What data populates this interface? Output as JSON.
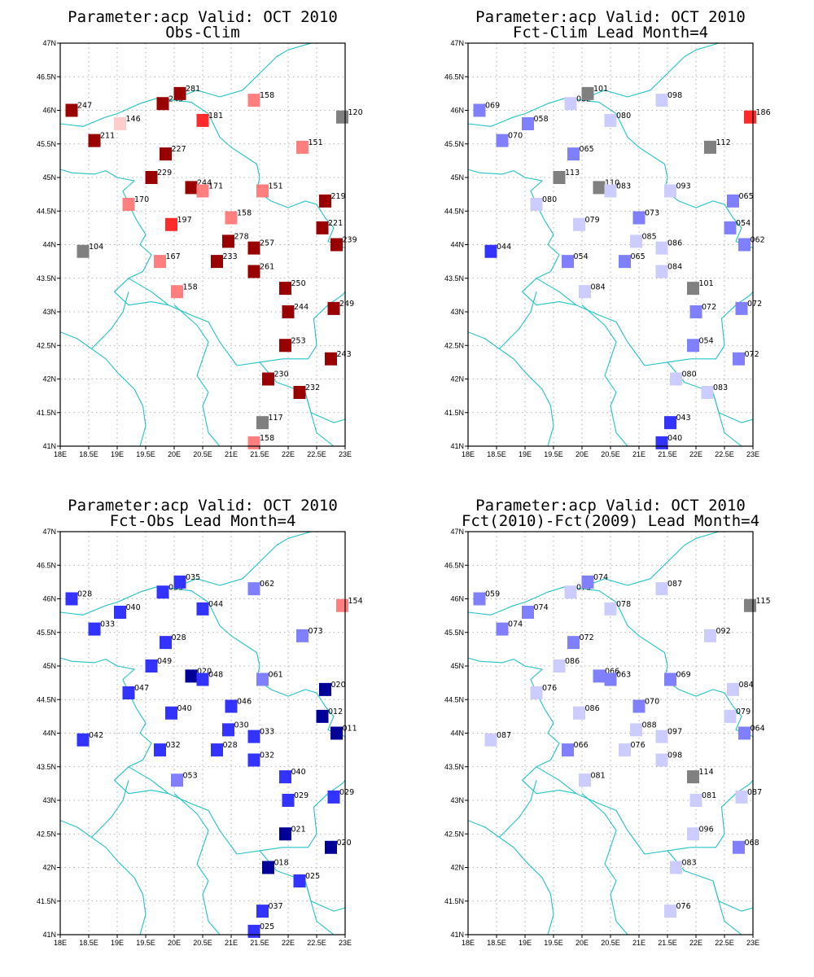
{
  "lon_ticks": [
    "18E",
    "18.5E",
    "19E",
    "19.5E",
    "20E",
    "20.5E",
    "21E",
    "21.5E",
    "22E",
    "22.5E",
    "23E"
  ],
  "lat_ticks": [
    "47N",
    "46.5N",
    "46N",
    "45.5N",
    "45N",
    "44.5N",
    "44N",
    "43.5N",
    "43N",
    "42.5N",
    "42N",
    "41.5N",
    "41N"
  ],
  "colors": {
    "dark_red": "#990000",
    "red": "#ff2a2a",
    "salmon": "#ff7f7f",
    "pink": "#ffcccc",
    "gray": "#808080",
    "pale_blue": "#ccccff",
    "light_blue": "#8080ff",
    "blue": "#3333ff",
    "dark_blue": "#000099",
    "border": "#22c3c6"
  },
  "panels": [
    {
      "title1": "Parameter:acp Valid: OCT 2010",
      "title2": "Obs-Clim",
      "stations": [
        {
          "lon": 18.2,
          "lat": 46.0,
          "label": "247",
          "color": "dark_red"
        },
        {
          "lon": 18.6,
          "lat": 45.55,
          "label": "211",
          "color": "dark_red"
        },
        {
          "lon": 19.05,
          "lat": 45.8,
          "label": "146",
          "color": "pink"
        },
        {
          "lon": 19.8,
          "lat": 46.1,
          "label": "245",
          "color": "dark_red"
        },
        {
          "lon": 20.1,
          "lat": 46.25,
          "label": "281",
          "color": "dark_red"
        },
        {
          "lon": 20.5,
          "lat": 45.85,
          "label": "181",
          "color": "red"
        },
        {
          "lon": 19.85,
          "lat": 45.35,
          "label": "227",
          "color": "dark_red"
        },
        {
          "lon": 19.6,
          "lat": 45.0,
          "label": "229",
          "color": "dark_red"
        },
        {
          "lon": 20.3,
          "lat": 44.85,
          "label": "244",
          "color": "dark_red"
        },
        {
          "lon": 20.5,
          "lat": 44.8,
          "label": "171",
          "color": "salmon"
        },
        {
          "lon": 19.2,
          "lat": 44.6,
          "label": "170",
          "color": "salmon"
        },
        {
          "lon": 19.95,
          "lat": 44.3,
          "label": "197",
          "color": "red"
        },
        {
          "lon": 21.0,
          "lat": 44.4,
          "label": "158",
          "color": "salmon"
        },
        {
          "lon": 20.95,
          "lat": 44.05,
          "label": "278",
          "color": "dark_red"
        },
        {
          "lon": 21.4,
          "lat": 43.95,
          "label": "257",
          "color": "dark_red"
        },
        {
          "lon": 20.75,
          "lat": 43.75,
          "label": "233",
          "color": "dark_red"
        },
        {
          "lon": 21.4,
          "lat": 43.6,
          "label": "261",
          "color": "dark_red"
        },
        {
          "lon": 19.75,
          "lat": 43.75,
          "label": "167",
          "color": "salmon"
        },
        {
          "lon": 18.4,
          "lat": 43.9,
          "label": "104",
          "color": "gray"
        },
        {
          "lon": 20.05,
          "lat": 43.3,
          "label": "158",
          "color": "salmon"
        },
        {
          "lon": 21.4,
          "lat": 46.15,
          "label": "158",
          "color": "salmon"
        },
        {
          "lon": 22.25,
          "lat": 45.45,
          "label": "151",
          "color": "salmon"
        },
        {
          "lon": 21.55,
          "lat": 44.8,
          "label": "151",
          "color": "salmon"
        },
        {
          "lon": 22.95,
          "lat": 45.9,
          "label": "120",
          "color": "gray"
        },
        {
          "lon": 22.65,
          "lat": 44.65,
          "label": "219",
          "color": "dark_red"
        },
        {
          "lon": 22.6,
          "lat": 44.25,
          "label": "221",
          "color": "dark_red"
        },
        {
          "lon": 22.85,
          "lat": 44.0,
          "label": "239",
          "color": "dark_red"
        },
        {
          "lon": 21.95,
          "lat": 43.35,
          "label": "250",
          "color": "dark_red"
        },
        {
          "lon": 22.0,
          "lat": 43.0,
          "label": "244",
          "color": "dark_red"
        },
        {
          "lon": 22.8,
          "lat": 43.05,
          "label": "249",
          "color": "dark_red"
        },
        {
          "lon": 21.95,
          "lat": 42.5,
          "label": "253",
          "color": "dark_red"
        },
        {
          "lon": 22.75,
          "lat": 42.3,
          "label": "243",
          "color": "dark_red"
        },
        {
          "lon": 21.65,
          "lat": 42.0,
          "label": "230",
          "color": "dark_red"
        },
        {
          "lon": 22.2,
          "lat": 41.8,
          "label": "232",
          "color": "dark_red"
        },
        {
          "lon": 21.55,
          "lat": 41.35,
          "label": "117",
          "color": "gray"
        },
        {
          "lon": 21.4,
          "lat": 41.05,
          "label": "158",
          "color": "salmon"
        }
      ]
    },
    {
      "title1": "Parameter:acp Valid: OCT 2010",
      "title2": "Fct-Clim Lead Month=4",
      "stations": [
        {
          "lon": 18.2,
          "lat": 46.0,
          "label": "069",
          "color": "light_blue"
        },
        {
          "lon": 18.6,
          "lat": 45.55,
          "label": "070",
          "color": "light_blue"
        },
        {
          "lon": 19.05,
          "lat": 45.8,
          "label": "058",
          "color": "light_blue"
        },
        {
          "lon": 19.8,
          "lat": 46.1,
          "label": "082",
          "color": "pale_blue"
        },
        {
          "lon": 20.1,
          "lat": 46.25,
          "label": "101",
          "color": "gray"
        },
        {
          "lon": 20.5,
          "lat": 45.85,
          "label": "080",
          "color": "pale_blue"
        },
        {
          "lon": 19.85,
          "lat": 45.35,
          "label": "065",
          "color": "light_blue"
        },
        {
          "lon": 19.6,
          "lat": 45.0,
          "label": "113",
          "color": "gray"
        },
        {
          "lon": 20.3,
          "lat": 44.85,
          "label": "110",
          "color": "gray"
        },
        {
          "lon": 20.5,
          "lat": 44.8,
          "label": "083",
          "color": "pale_blue"
        },
        {
          "lon": 19.2,
          "lat": 44.6,
          "label": "080",
          "color": "pale_blue"
        },
        {
          "lon": 19.95,
          "lat": 44.3,
          "label": "079",
          "color": "pale_blue"
        },
        {
          "lon": 21.0,
          "lat": 44.4,
          "label": "073",
          "color": "light_blue"
        },
        {
          "lon": 20.95,
          "lat": 44.05,
          "label": "085",
          "color": "pale_blue"
        },
        {
          "lon": 21.4,
          "lat": 43.95,
          "label": "086",
          "color": "pale_blue"
        },
        {
          "lon": 20.75,
          "lat": 43.75,
          "label": "065",
          "color": "light_blue"
        },
        {
          "lon": 21.4,
          "lat": 43.6,
          "label": "084",
          "color": "pale_blue"
        },
        {
          "lon": 19.75,
          "lat": 43.75,
          "label": "054",
          "color": "light_blue"
        },
        {
          "lon": 18.4,
          "lat": 43.9,
          "label": "044",
          "color": "blue"
        },
        {
          "lon": 20.05,
          "lat": 43.3,
          "label": "084",
          "color": "pale_blue"
        },
        {
          "lon": 21.4,
          "lat": 46.15,
          "label": "098",
          "color": "pale_blue"
        },
        {
          "lon": 22.25,
          "lat": 45.45,
          "label": "112",
          "color": "gray"
        },
        {
          "lon": 21.55,
          "lat": 44.8,
          "label": "093",
          "color": "pale_blue"
        },
        {
          "lon": 22.95,
          "lat": 45.9,
          "label": "186",
          "color": "red"
        },
        {
          "lon": 22.65,
          "lat": 44.65,
          "label": "065",
          "color": "light_blue"
        },
        {
          "lon": 22.6,
          "lat": 44.25,
          "label": "054",
          "color": "light_blue"
        },
        {
          "lon": 22.85,
          "lat": 44.0,
          "label": "062",
          "color": "light_blue"
        },
        {
          "lon": 21.95,
          "lat": 43.35,
          "label": "101",
          "color": "gray"
        },
        {
          "lon": 22.0,
          "lat": 43.0,
          "label": "072",
          "color": "light_blue"
        },
        {
          "lon": 22.8,
          "lat": 43.05,
          "label": "072",
          "color": "light_blue"
        },
        {
          "lon": 21.95,
          "lat": 42.5,
          "label": "054",
          "color": "light_blue"
        },
        {
          "lon": 22.75,
          "lat": 42.3,
          "label": "072",
          "color": "light_blue"
        },
        {
          "lon": 21.65,
          "lat": 42.0,
          "label": "080",
          "color": "pale_blue"
        },
        {
          "lon": 22.2,
          "lat": 41.8,
          "label": "083",
          "color": "pale_blue"
        },
        {
          "lon": 21.55,
          "lat": 41.35,
          "label": "043",
          "color": "blue"
        },
        {
          "lon": 21.4,
          "lat": 41.05,
          "label": "040",
          "color": "blue"
        }
      ]
    },
    {
      "title1": "Parameter:acp Valid: OCT 2010",
      "title2": "Fct-Obs Lead Month=4",
      "stations": [
        {
          "lon": 18.2,
          "lat": 46.0,
          "label": "028",
          "color": "blue"
        },
        {
          "lon": 18.6,
          "lat": 45.55,
          "label": "033",
          "color": "blue"
        },
        {
          "lon": 19.05,
          "lat": 45.8,
          "label": "040",
          "color": "blue"
        },
        {
          "lon": 19.8,
          "lat": 46.1,
          "label": "033",
          "color": "blue"
        },
        {
          "lon": 20.1,
          "lat": 46.25,
          "label": "035",
          "color": "blue"
        },
        {
          "lon": 20.5,
          "lat": 45.85,
          "label": "044",
          "color": "blue"
        },
        {
          "lon": 19.85,
          "lat": 45.35,
          "label": "028",
          "color": "blue"
        },
        {
          "lon": 19.6,
          "lat": 45.0,
          "label": "049",
          "color": "blue"
        },
        {
          "lon": 20.3,
          "lat": 44.85,
          "label": "020",
          "color": "dark_blue"
        },
        {
          "lon": 20.5,
          "lat": 44.8,
          "label": "048",
          "color": "blue"
        },
        {
          "lon": 19.2,
          "lat": 44.6,
          "label": "047",
          "color": "blue"
        },
        {
          "lon": 19.95,
          "lat": 44.3,
          "label": "040",
          "color": "blue"
        },
        {
          "lon": 21.0,
          "lat": 44.4,
          "label": "046",
          "color": "blue"
        },
        {
          "lon": 20.95,
          "lat": 44.05,
          "label": "030",
          "color": "blue"
        },
        {
          "lon": 21.4,
          "lat": 43.95,
          "label": "033",
          "color": "blue"
        },
        {
          "lon": 20.75,
          "lat": 43.75,
          "label": "028",
          "color": "blue"
        },
        {
          "lon": 21.4,
          "lat": 43.6,
          "label": "032",
          "color": "blue"
        },
        {
          "lon": 19.75,
          "lat": 43.75,
          "label": "032",
          "color": "blue"
        },
        {
          "lon": 18.4,
          "lat": 43.9,
          "label": "042",
          "color": "blue"
        },
        {
          "lon": 20.05,
          "lat": 43.3,
          "label": "053",
          "color": "light_blue"
        },
        {
          "lon": 21.4,
          "lat": 46.15,
          "label": "062",
          "color": "light_blue"
        },
        {
          "lon": 22.25,
          "lat": 45.45,
          "label": "073",
          "color": "light_blue"
        },
        {
          "lon": 21.55,
          "lat": 44.8,
          "label": "061",
          "color": "light_blue"
        },
        {
          "lon": 22.95,
          "lat": 45.9,
          "label": "154",
          "color": "salmon"
        },
        {
          "lon": 22.65,
          "lat": 44.65,
          "label": "020",
          "color": "dark_blue"
        },
        {
          "lon": 22.6,
          "lat": 44.25,
          "label": "012",
          "color": "dark_blue"
        },
        {
          "lon": 22.85,
          "lat": 44.0,
          "label": "011",
          "color": "dark_blue"
        },
        {
          "lon": 21.95,
          "lat": 43.35,
          "label": "040",
          "color": "blue"
        },
        {
          "lon": 22.0,
          "lat": 43.0,
          "label": "029",
          "color": "blue"
        },
        {
          "lon": 22.8,
          "lat": 43.05,
          "label": "029",
          "color": "blue"
        },
        {
          "lon": 21.95,
          "lat": 42.5,
          "label": "021",
          "color": "dark_blue"
        },
        {
          "lon": 22.75,
          "lat": 42.3,
          "label": "020",
          "color": "dark_blue"
        },
        {
          "lon": 21.65,
          "lat": 42.0,
          "label": "018",
          "color": "dark_blue"
        },
        {
          "lon": 22.2,
          "lat": 41.8,
          "label": "025",
          "color": "blue"
        },
        {
          "lon": 21.55,
          "lat": 41.35,
          "label": "037",
          "color": "blue"
        },
        {
          "lon": 21.4,
          "lat": 41.05,
          "label": "025",
          "color": "blue"
        }
      ]
    },
    {
      "title1": "Parameter:acp Valid: OCT 2010",
      "title2": "Fct(2010)-Fct(2009) Lead Month=4",
      "stations": [
        {
          "lon": 18.2,
          "lat": 46.0,
          "label": "059",
          "color": "light_blue"
        },
        {
          "lon": 18.6,
          "lat": 45.55,
          "label": "074",
          "color": "light_blue"
        },
        {
          "lon": 19.05,
          "lat": 45.8,
          "label": "074",
          "color": "light_blue"
        },
        {
          "lon": 19.8,
          "lat": 46.1,
          "label": "075",
          "color": "pale_blue"
        },
        {
          "lon": 20.1,
          "lat": 46.25,
          "label": "074",
          "color": "light_blue"
        },
        {
          "lon": 20.5,
          "lat": 45.85,
          "label": "078",
          "color": "pale_blue"
        },
        {
          "lon": 19.85,
          "lat": 45.35,
          "label": "072",
          "color": "light_blue"
        },
        {
          "lon": 19.6,
          "lat": 45.0,
          "label": "086",
          "color": "pale_blue"
        },
        {
          "lon": 20.3,
          "lat": 44.85,
          "label": "066",
          "color": "light_blue"
        },
        {
          "lon": 20.5,
          "lat": 44.8,
          "label": "063",
          "color": "light_blue"
        },
        {
          "lon": 19.2,
          "lat": 44.6,
          "label": "076",
          "color": "pale_blue"
        },
        {
          "lon": 19.95,
          "lat": 44.3,
          "label": "086",
          "color": "pale_blue"
        },
        {
          "lon": 21.0,
          "lat": 44.4,
          "label": "070",
          "color": "light_blue"
        },
        {
          "lon": 20.95,
          "lat": 44.05,
          "label": "088",
          "color": "pale_blue"
        },
        {
          "lon": 21.4,
          "lat": 43.95,
          "label": "097",
          "color": "pale_blue"
        },
        {
          "lon": 20.75,
          "lat": 43.75,
          "label": "076",
          "color": "pale_blue"
        },
        {
          "lon": 21.4,
          "lat": 43.6,
          "label": "098",
          "color": "pale_blue"
        },
        {
          "lon": 19.75,
          "lat": 43.75,
          "label": "066",
          "color": "light_blue"
        },
        {
          "lon": 18.4,
          "lat": 43.9,
          "label": "087",
          "color": "pale_blue"
        },
        {
          "lon": 20.05,
          "lat": 43.3,
          "label": "081",
          "color": "pale_blue"
        },
        {
          "lon": 21.4,
          "lat": 46.15,
          "label": "087",
          "color": "pale_blue"
        },
        {
          "lon": 22.25,
          "lat": 45.45,
          "label": "092",
          "color": "pale_blue"
        },
        {
          "lon": 21.55,
          "lat": 44.8,
          "label": "069",
          "color": "light_blue"
        },
        {
          "lon": 22.95,
          "lat": 45.9,
          "label": "115",
          "color": "gray"
        },
        {
          "lon": 22.65,
          "lat": 44.65,
          "label": "084",
          "color": "pale_blue"
        },
        {
          "lon": 22.6,
          "lat": 44.25,
          "label": "079",
          "color": "pale_blue"
        },
        {
          "lon": 22.85,
          "lat": 44.0,
          "label": "064",
          "color": "light_blue"
        },
        {
          "lon": 21.95,
          "lat": 43.35,
          "label": "114",
          "color": "gray"
        },
        {
          "lon": 22.0,
          "lat": 43.0,
          "label": "081",
          "color": "pale_blue"
        },
        {
          "lon": 22.8,
          "lat": 43.05,
          "label": "087",
          "color": "pale_blue"
        },
        {
          "lon": 21.95,
          "lat": 42.5,
          "label": "096",
          "color": "pale_blue"
        },
        {
          "lon": 22.75,
          "lat": 42.3,
          "label": "068",
          "color": "light_blue"
        },
        {
          "lon": 21.65,
          "lat": 42.0,
          "label": "083",
          "color": "pale_blue"
        },
        {
          "lon": 21.55,
          "lat": 41.35,
          "label": "076",
          "color": "pale_blue"
        }
      ]
    }
  ]
}
